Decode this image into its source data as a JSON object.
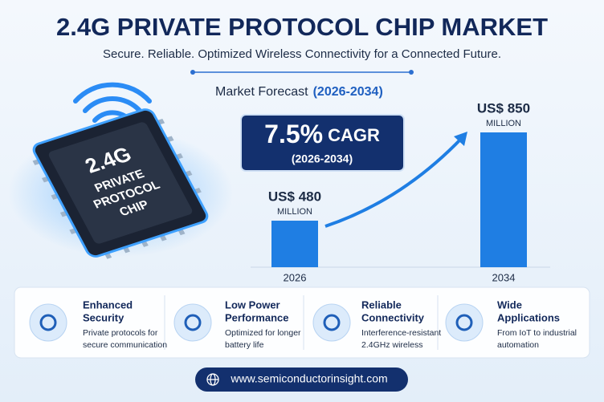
{
  "header": {
    "title": "2.4G PRIVATE PROTOCOL CHIP MARKET",
    "subtitle": "Secure. Reliable. Optimized Wireless Connectivity for a Connected Future."
  },
  "chip": [
    "2.4G",
    "PRIVATE",
    "PROTOCOL",
    "CHIP"
  ],
  "chart_data": {
    "type": "bar",
    "title": "Market Forecast",
    "subtitle": "(2026-2034)",
    "categories": [
      "2026",
      "2034"
    ],
    "values": [
      480,
      850
    ],
    "value_labels": [
      "US$ 480",
      "US$ 850"
    ],
    "unit": "MILLION",
    "color": "#1f7ee3",
    "ylim": [
      285,
      850
    ],
    "cagr": "7.5%",
    "cagr_label": "CAGR",
    "cagr_period": "(2026-2034)"
  },
  "features": [
    {
      "title": [
        "Enhanced",
        "Security"
      ],
      "description": [
        "Private protocols for",
        "secure communication"
      ]
    },
    {
      "title": [
        "Low Power",
        "Performance"
      ],
      "description": [
        "Optimized for longer",
        "battery life"
      ]
    },
    {
      "title": [
        "Reliable",
        "Connectivity"
      ],
      "description": [
        "Interference-resistant",
        "2.4GHz wireless"
      ]
    },
    {
      "title": [
        "Wide",
        "Applications"
      ],
      "description": [
        "From IoT to industrial",
        "automation"
      ]
    }
  ],
  "footer": {
    "url": "www.semiconductorinsight.com"
  }
}
